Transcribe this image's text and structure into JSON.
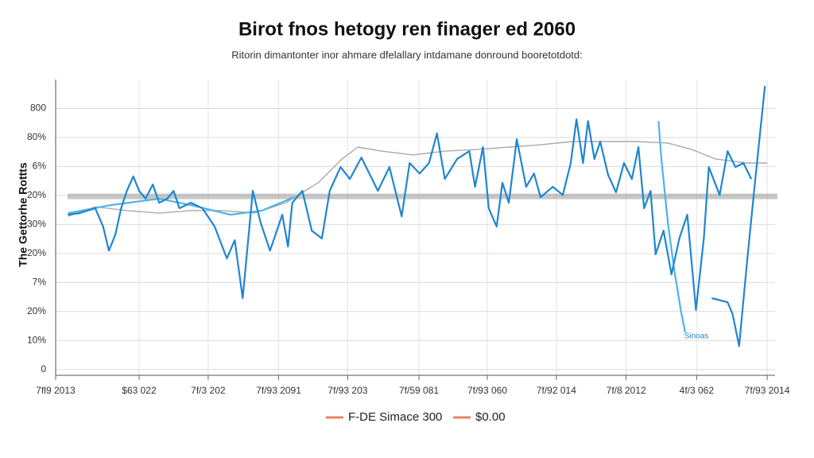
{
  "chart_data": {
    "type": "line",
    "title": "Birot fnos hetogy ren finager ed 2060",
    "subtitle": "Ritorin dimantonter inor ahmare dfelallary intdamane donround booretotdotd:",
    "y_label": "The Gettorhe Rottts",
    "annotation": "Sinoas",
    "grid": true,
    "xlim": [
      0,
      100
    ],
    "ylim": [
      -20,
      1000
    ],
    "xticks": [
      {
        "value": 0,
        "label": "7fl9 2013"
      },
      {
        "value": 11.6,
        "label": "$63 022"
      },
      {
        "value": 21.2,
        "label": "7f/3 202"
      },
      {
        "value": 31,
        "label": "7f/93 2091"
      },
      {
        "value": 40.6,
        "label": "7f/93 203"
      },
      {
        "value": 50.5,
        "label": "7f/59 081"
      },
      {
        "value": 60,
        "label": "7f/93 060"
      },
      {
        "value": 69.6,
        "label": "7f/92 014"
      },
      {
        "value": 79.3,
        "label": "7f/8 2012"
      },
      {
        "value": 89.1,
        "label": "4f/3 062"
      },
      {
        "value": 98.9,
        "label": "7f/93 2014"
      }
    ],
    "yticks": [
      0,
      {
        "value": 100,
        "label": "10%"
      },
      {
        "value": 200,
        "label": "20%"
      },
      {
        "value": 300,
        "label": "7%"
      },
      {
        "value": 400,
        "label": "20%"
      },
      {
        "value": 500,
        "label": "30%"
      },
      {
        "value": 600,
        "label": "20%"
      },
      {
        "value": 700,
        "label": "6%"
      },
      {
        "value": 800,
        "label": "80%"
      },
      {
        "value": 900,
        "label": "800"
      }
    ],
    "reference_band": 597,
    "legend": [
      {
        "name": "F-DE Simace 300",
        "color": "#e8875a"
      },
      {
        "name": "$0.00",
        "color": "#e8875a"
      }
    ],
    "series": [
      {
        "color": "#aaaaaa",
        "x": [
          1.7,
          5.5,
          9.9,
          14.4,
          18.8,
          23.2,
          27.6,
          32.0,
          36.5,
          39.8,
          42.0,
          45.3,
          49.7,
          54.1,
          58.6,
          63.0,
          67.4,
          71.8,
          76.2,
          80.7,
          85.1,
          88.4,
          91.7,
          96.1,
          98.9
        ],
        "values": [
          528,
          561,
          548,
          539,
          548,
          548,
          539,
          575,
          644,
          726,
          767,
          753,
          740,
          753,
          759,
          767,
          775,
          786,
          786,
          786,
          781,
          759,
          726,
          712,
          712
        ]
      },
      {
        "color": "#4fb3e8",
        "x": [
          1.7,
          7.7,
          14.4,
          18.8,
          24.3,
          28.7,
          33.1,
          null,
          83.8,
          84.2,
          85.1,
          86.0,
          86.9,
          87.5
        ],
        "values": [
          539,
          567,
          589,
          567,
          534,
          548,
          594,
          null,
          857,
          726,
          506,
          342,
          205,
          128
        ]
      },
      {
        "color": "#1f86d1",
        "x": [
          1.7,
          3.3,
          5.5,
          6.6,
          7.4,
          8.3,
          9.1,
          9.9,
          10.8,
          11.6,
          12.5,
          13.5,
          14.4,
          15.5,
          16.4,
          17.2,
          18.8,
          20.4,
          22.1,
          23.8,
          24.9,
          26.0,
          27.4,
          28.5,
          29.8,
          31.5,
          32.3,
          32.9,
          34.3,
          35.6,
          37.0,
          38.1,
          39.6,
          40.9,
          42.5,
          43.6,
          44.8,
          46.4,
          48.1,
          49.2,
          50.6,
          51.9,
          53.0,
          54.1,
          55.8,
          57.5,
          58.3,
          59.4,
          60.2,
          61.3,
          62.1,
          63.0,
          64.1,
          65.4,
          66.5,
          67.4,
          69.1,
          70.5,
          71.6,
          72.4,
          73.3,
          74.0,
          74.9,
          75.7,
          76.8,
          77.9,
          79.0,
          80.1,
          81.0,
          81.8,
          82.7,
          83.4,
          84.5,
          85.6,
          86.7,
          87.8,
          89.0,
          90.1,
          90.8,
          92.3,
          93.4,
          94.5,
          95.6,
          96.7,
          null,
          91.2,
          93.4,
          94.1,
          95.0,
          96.1,
          97.2,
          98.6
        ],
        "values": [
          534,
          539,
          556,
          493,
          410,
          465,
          556,
          616,
          666,
          616,
          589,
          638,
          575,
          589,
          616,
          556,
          575,
          556,
          493,
          383,
          446,
          246,
          616,
          506,
          410,
          534,
          424,
          575,
          616,
          479,
          452,
          616,
          698,
          657,
          731,
          676,
          616,
          698,
          528,
          712,
          676,
          712,
          814,
          657,
          726,
          753,
          630,
          767,
          556,
          493,
          644,
          575,
          794,
          630,
          676,
          594,
          630,
          602,
          712,
          863,
          712,
          857,
          726,
          786,
          671,
          611,
          712,
          657,
          767,
          556,
          616,
          397,
          479,
          328,
          452,
          534,
          205,
          452,
          698,
          602,
          753,
          698,
          712,
          657,
          null,
          246,
          232,
          191,
          81,
          369,
          644,
          978
        ]
      }
    ]
  }
}
